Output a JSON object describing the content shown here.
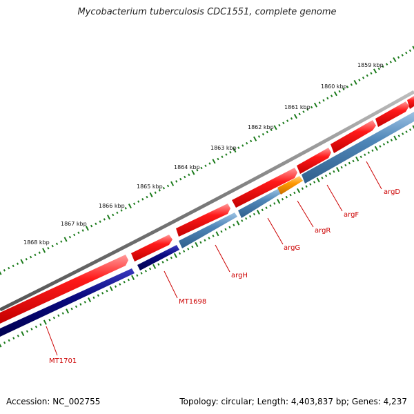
{
  "title": "Mycobacterium tuberculosis CDC1551, complete genome",
  "footer": {
    "accession": "Accession: NC_002755",
    "stats": "Topology: circular; Length: 4,403,837 bp; Genes: 4,237"
  },
  "scale_labels": [
    "1859 kbp",
    "1860 kbp",
    "1861 kbp",
    "1862 kbp",
    "1863 kbp",
    "1864 kbp",
    "1865 kbp",
    "1866 kbp",
    "1867 kbp",
    "1868 kbp"
  ],
  "gene_labels": [
    "argD",
    "argF",
    "argR",
    "argG",
    "argH",
    "MT1698",
    "MT1701"
  ],
  "colors": {
    "backbone": "#808080",
    "forward_gene": "#ff1a1a",
    "reverse_gene_steel": "#4f86b8",
    "reverse_gene_navy": "#0a0a80",
    "regulator_gene": "#ff9900",
    "tick": "#1a7a1a",
    "label": "#cc0000"
  }
}
